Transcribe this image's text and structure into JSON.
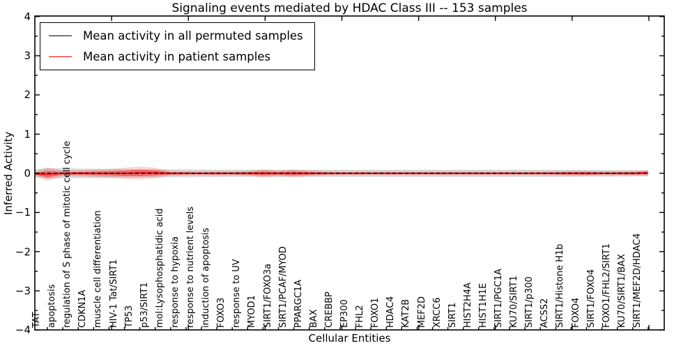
{
  "title": "Signaling events mediated by HDAC Class III -- 153 samples",
  "axes": {
    "xlabel": "Cellular Entities",
    "ylabel": "Inferred Activity",
    "ytick_labels": [
      "4",
      "3",
      "2",
      "1",
      "0",
      "−1",
      "−2",
      "−3",
      "−4"
    ]
  },
  "legend": {
    "items": [
      {
        "label": "Mean activity in all permuted samples",
        "color": "#000000"
      },
      {
        "label": "Mean activity in patient samples",
        "color": "#ff0000"
      }
    ]
  },
  "chart_data": {
    "type": "line",
    "title": "Signaling events mediated by HDAC Class III -- 153 samples",
    "xlabel": "Cellular Entities",
    "ylabel": "Inferred Activity",
    "ylim": [
      -4,
      4
    ],
    "yticks_major": [
      -4,
      -3,
      -2,
      -1,
      0,
      1,
      2,
      3,
      4
    ],
    "yticks_minor": [
      -3.5,
      -2.5,
      -1.5,
      -0.5,
      0.5,
      1.5,
      2.5,
      3.5
    ],
    "grid": false,
    "legend_position": "upper left",
    "categories": [
      "TAT",
      "apoptosis",
      "regulation of S phase of mitotic cell cycle",
      "CDKN1A",
      "muscle cell differentiation",
      "HIV-1 Tat/SIRT1",
      "TP53",
      "p53/SIRT1",
      "mol:Lysophosphatidic acid",
      "response to hypoxia",
      "response to nutrient levels",
      "induction of apoptosis",
      "FOXO3",
      "response to UV",
      "MYOD1",
      "SIRT1/FOXO3a",
      "SIRT1/PCAF/MYOD",
      "PPARGC1A",
      "BAX",
      "CREBBP",
      "EP300",
      "FHL2",
      "FOXO1",
      "HDAC4",
      "KAT2B",
      "MEF2D",
      "XRCC6",
      "SIRT1",
      "HIST2H4A",
      "HIST1H1E",
      "SIRT1/PGC1A",
      "KU70/SIRT1",
      "SIRT1/p300",
      "ACSS2",
      "SIRT1/Histone H1b",
      "FOXO4",
      "SIRT1/FOXO4",
      "FOXO1/FHL2/SIRT1",
      "KU70/SIRT1/BAX",
      "SIRT1/MEF2D/HDAC4"
    ],
    "series": [
      {
        "name": "Mean activity in all permuted samples",
        "color": "#000000",
        "style": "dashed",
        "values": [
          0,
          0,
          0,
          0,
          0,
          0,
          0,
          0,
          0,
          0,
          0,
          0,
          0,
          0,
          0,
          0,
          0,
          0,
          0,
          0,
          0,
          0,
          0,
          0,
          0,
          0,
          0,
          0,
          0,
          0,
          0,
          0,
          0,
          0,
          0,
          0,
          0,
          0,
          0,
          0
        ]
      },
      {
        "name": "Mean activity in patient samples",
        "color": "#ff0000",
        "style": "solid",
        "values": [
          -0.02,
          0,
          0,
          0,
          0,
          0,
          0.01,
          0.01,
          0,
          0,
          0,
          0,
          0,
          0,
          0,
          0,
          0,
          0,
          0,
          0,
          0,
          0,
          0,
          0,
          0,
          0,
          0,
          0,
          0,
          0,
          0,
          0,
          0,
          0,
          0,
          0,
          0,
          0,
          0,
          0.01
        ]
      }
    ],
    "bands": [
      {
        "name": "permuted-std",
        "center": "permuted",
        "color": "#999999",
        "opacity": 0.38,
        "edge_factor": 0.8,
        "half_widths": [
          0.13,
          0.125,
          0.12,
          0.115,
          0.11,
          0.105,
          0.1,
          0.1,
          0.1,
          0.098,
          0.096,
          0.094,
          0.092,
          0.09,
          0.09,
          0.09,
          0.09,
          0.09,
          0.09,
          0.09,
          0.09,
          0.09,
          0.09,
          0.09,
          0.09,
          0.09,
          0.09,
          0.09,
          0.09,
          0.09,
          0.09,
          0.09,
          0.09,
          0.09,
          0.088,
          0.086,
          0.084,
          0.082,
          0.08,
          0.078
        ]
      },
      {
        "name": "patient-std-outer",
        "center": "patient",
        "color": "#ff0000",
        "opacity": 0.18,
        "edge_factor": 0.25,
        "half_widths": [
          0.17,
          0.07,
          0.075,
          0.09,
          0.11,
          0.14,
          0.16,
          0.13,
          0.06,
          0.05,
          0.05,
          0.05,
          0.05,
          0.06,
          0.1,
          0.07,
          0.1,
          0.07,
          0.05,
          0.045,
          0.045,
          0.045,
          0.045,
          0.045,
          0.045,
          0.045,
          0.045,
          0.045,
          0.045,
          0.045,
          0.045,
          0.045,
          0.045,
          0.05,
          0.06,
          0.06,
          0.05,
          0.05,
          0.055,
          0.07
        ]
      },
      {
        "name": "patient-std-inner",
        "center": "patient",
        "color": "#ff0000",
        "opacity": 0.42,
        "edge_factor": 0.25,
        "half_widths": [
          0.085,
          0.035,
          0.038,
          0.045,
          0.055,
          0.07,
          0.08,
          0.065,
          0.03,
          0.025,
          0.025,
          0.025,
          0.025,
          0.03,
          0.05,
          0.035,
          0.05,
          0.035,
          0.025,
          0.022,
          0.022,
          0.022,
          0.022,
          0.022,
          0.022,
          0.022,
          0.022,
          0.022,
          0.022,
          0.022,
          0.022,
          0.022,
          0.022,
          0.025,
          0.03,
          0.03,
          0.025,
          0.025,
          0.028,
          0.035
        ]
      }
    ]
  }
}
